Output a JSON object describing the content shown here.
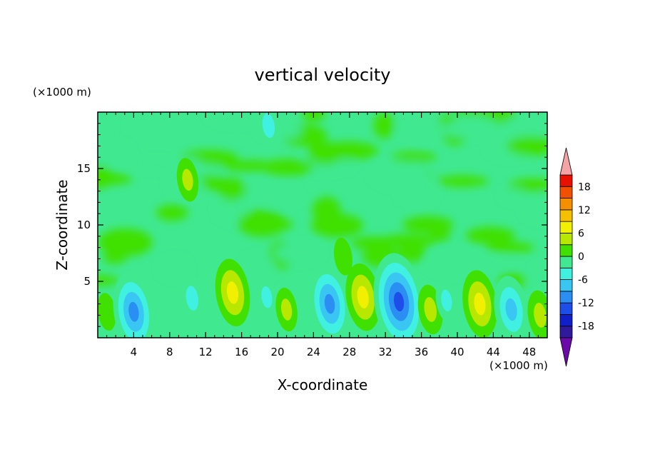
{
  "chart_data": {
    "type": "heatmap",
    "title": "vertical velocity",
    "xlabel": "X-coordinate",
    "ylabel": "Z-coordinate",
    "x_unit": "(×1000 m)",
    "y_unit": "(×1000 m)",
    "xlim": [
      0,
      50
    ],
    "ylim": [
      0,
      20
    ],
    "x_ticks": [
      4,
      8,
      12,
      16,
      20,
      24,
      28,
      32,
      36,
      40,
      44,
      48
    ],
    "y_ticks": [
      5,
      10,
      15
    ],
    "grid": false,
    "legend": "right",
    "colorbar": {
      "levels": [
        -21,
        -18,
        -15,
        -12,
        -9,
        -6,
        -3,
        0,
        3,
        6,
        9,
        12,
        15,
        18,
        21
      ],
      "tick_labels": [
        18,
        12,
        6,
        0,
        -6,
        -12,
        -18
      ],
      "colors": [
        "#6a0aa8",
        "#2e1a9a",
        "#1020c8",
        "#1d4ee8",
        "#2a8ef2",
        "#3ac6f2",
        "#40f0e0",
        "#40e890",
        "#40e000",
        "#b8e800",
        "#f0f000",
        "#f4c000",
        "#f49000",
        "#f05000",
        "#e81000",
        "#f4a4a4"
      ],
      "extend": "both"
    },
    "features": [
      {
        "x": 1.0,
        "z": 2.3,
        "value": 3
      },
      {
        "x": 4.0,
        "z": 2.3,
        "value": -10
      },
      {
        "x": 10.5,
        "z": 3.5,
        "value": -5
      },
      {
        "x": 15.0,
        "z": 4.0,
        "value": 8
      },
      {
        "x": 18.8,
        "z": 3.6,
        "value": -4
      },
      {
        "x": 21.0,
        "z": 2.5,
        "value": 4
      },
      {
        "x": 25.8,
        "z": 3.0,
        "value": -10
      },
      {
        "x": 29.5,
        "z": 3.6,
        "value": 8
      },
      {
        "x": 33.5,
        "z": 3.2,
        "value": -13
      },
      {
        "x": 37.0,
        "z": 2.5,
        "value": 5
      },
      {
        "x": 38.8,
        "z": 3.3,
        "value": -4
      },
      {
        "x": 42.5,
        "z": 3.0,
        "value": 8
      },
      {
        "x": 46.0,
        "z": 2.5,
        "value": -8
      },
      {
        "x": 49.2,
        "z": 2.0,
        "value": 5
      },
      {
        "x": 10.0,
        "z": 14.0,
        "value": 4
      },
      {
        "x": 19.0,
        "z": 18.8,
        "value": -5
      },
      {
        "x": 27.3,
        "z": 7.2,
        "value": 3
      }
    ]
  }
}
